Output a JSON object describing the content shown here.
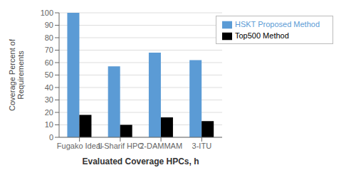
{
  "chart_data": {
    "type": "bar",
    "categories": [
      "Fugako Ideal",
      "1-Sharif HPC",
      "2-DAMMAM",
      "3-ITU"
    ],
    "series": [
      {
        "name": "HSKT Proposed Method",
        "color": "#5B9BD5",
        "values": [
          100,
          57,
          68,
          62
        ]
      },
      {
        "name": "Top500 Method",
        "color": "#000000",
        "values": [
          18,
          10,
          16,
          13
        ]
      }
    ],
    "xlabel": "Evaluated Coverage HPCs, h",
    "ylabel": "Coverage Percent of\nRequirements",
    "ylim": [
      0,
      100
    ],
    "yticks": [
      0,
      10,
      20,
      30,
      40,
      50,
      60,
      70,
      80,
      90,
      100
    ],
    "grid": true,
    "legend": "upper right"
  }
}
